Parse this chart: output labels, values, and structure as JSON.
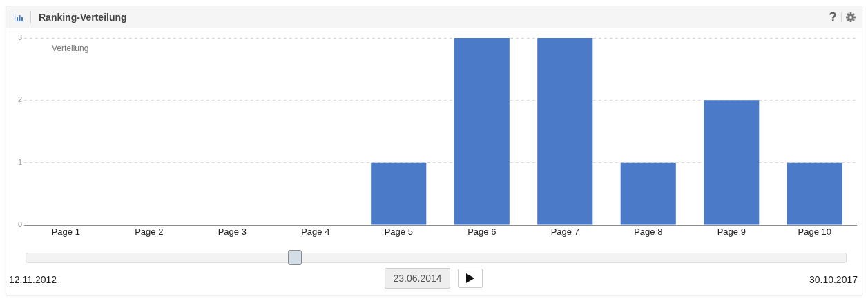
{
  "chart_data": {
    "type": "bar",
    "title": "Ranking-Verteilung",
    "categories": [
      "Page 1",
      "Page 2",
      "Page 3",
      "Page 4",
      "Page 5",
      "Page 6",
      "Page 7",
      "Page 8",
      "Page 9",
      "Page 10"
    ],
    "values": [
      0,
      0,
      0,
      0,
      1,
      3,
      3,
      1,
      2,
      1
    ],
    "color": "#4a7ac8",
    "ylim": [
      0,
      3
    ],
    "yticks": [
      0,
      1,
      2,
      3
    ],
    "grid": "y",
    "legend_title": "Verteilung",
    "annotations": [
      "12.11.2012",
      "23.06.2014",
      "30.10.2017"
    ]
  }
}
